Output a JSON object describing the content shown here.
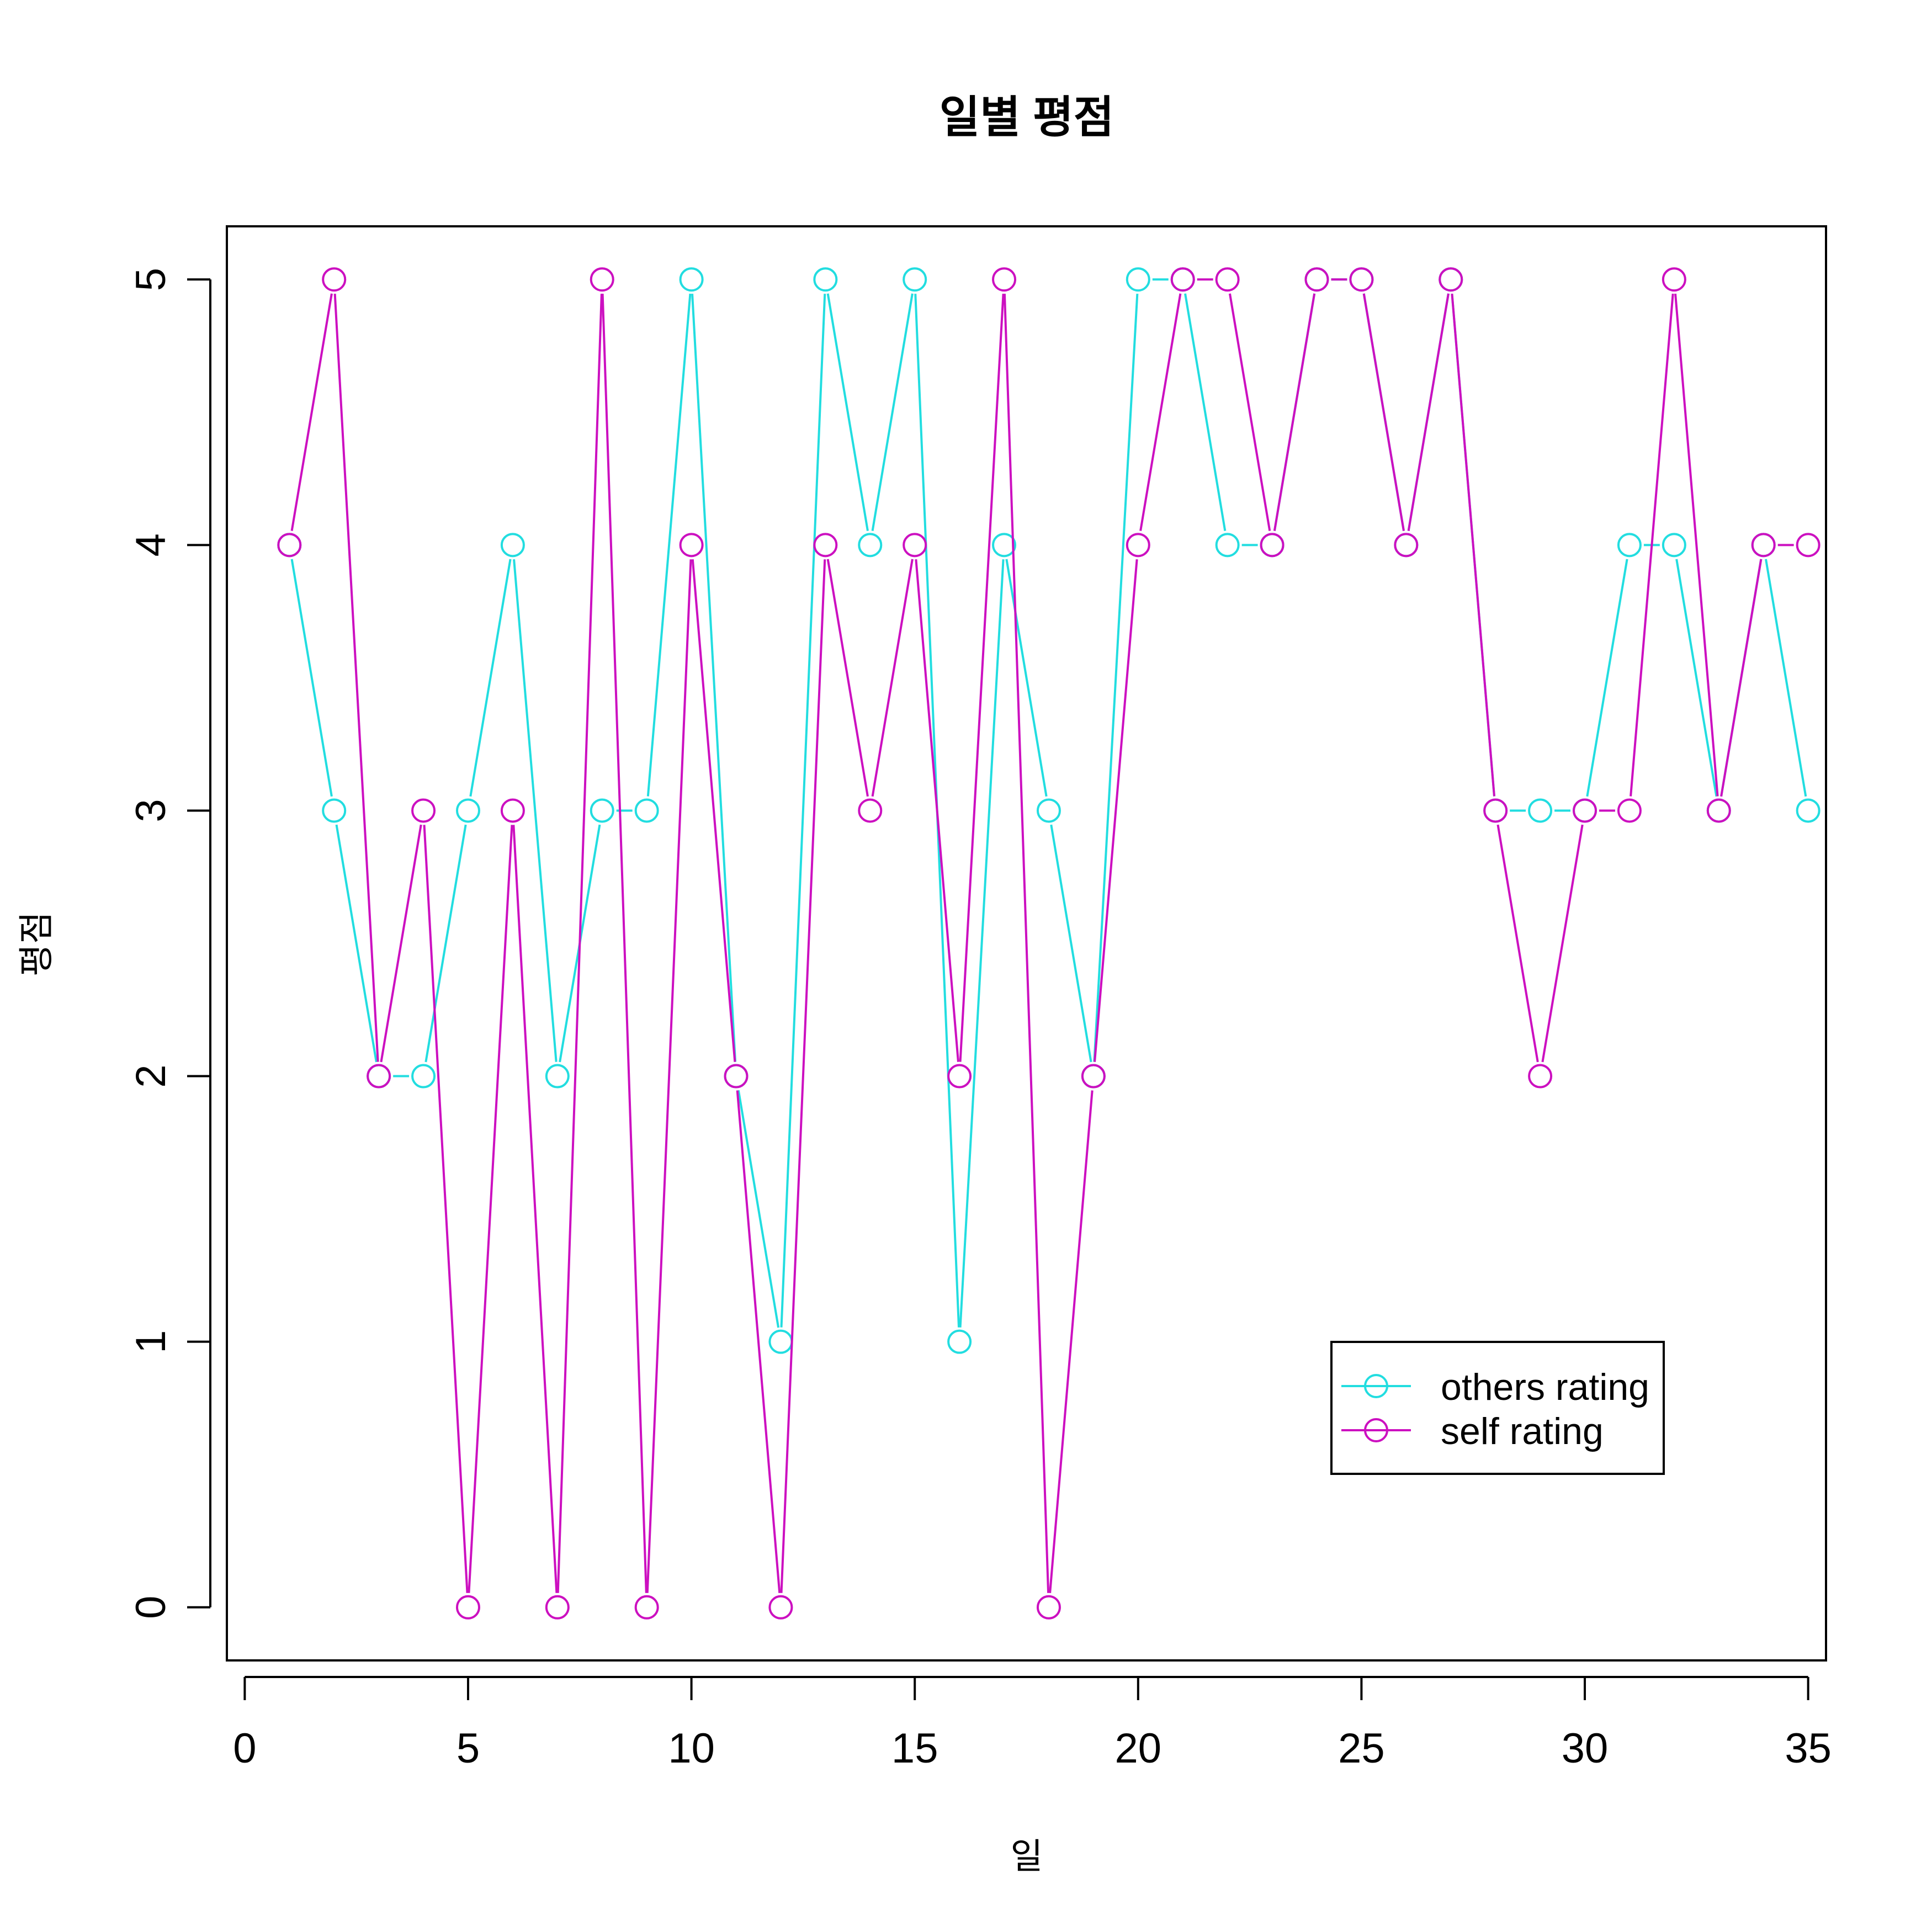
{
  "chart_data": {
    "type": "line",
    "title": "일별 평점",
    "xlabel": "일",
    "ylabel": "평점",
    "xlim": [
      -0.4,
      35.4
    ],
    "ylim": [
      -0.2,
      5.2
    ],
    "x_ticks": [
      0,
      5,
      10,
      15,
      20,
      25,
      30,
      35
    ],
    "y_ticks": [
      0,
      1,
      2,
      3,
      4,
      5
    ],
    "grid": false,
    "legend_position": "bottom-right",
    "marker": "open-circle",
    "x": [
      1,
      2,
      3,
      4,
      5,
      6,
      7,
      8,
      9,
      10,
      11,
      12,
      13,
      14,
      15,
      16,
      17,
      18,
      19,
      20,
      21,
      22,
      23,
      24,
      25,
      26,
      27,
      28,
      29,
      30,
      31,
      32,
      33,
      34,
      35
    ],
    "series": [
      {
        "name": "others rating",
        "color": "#22DDE0",
        "values": [
          4,
          3,
          2,
          2,
          3,
          4,
          2,
          3,
          3,
          5,
          2,
          1,
          5,
          4,
          5,
          1,
          4,
          3,
          2,
          5,
          5,
          4,
          4,
          5,
          5,
          4,
          5,
          3,
          3,
          3,
          4,
          4,
          3,
          4,
          3
        ]
      },
      {
        "name": "self rating",
        "color": "#CC10C0",
        "values": [
          4,
          5,
          2,
          3,
          0,
          3,
          0,
          5,
          0,
          4,
          2,
          0,
          4,
          3,
          4,
          2,
          5,
          0,
          2,
          4,
          5,
          5,
          4,
          5,
          5,
          4,
          5,
          3,
          2,
          3,
          3,
          5,
          3,
          4,
          4
        ]
      }
    ]
  }
}
